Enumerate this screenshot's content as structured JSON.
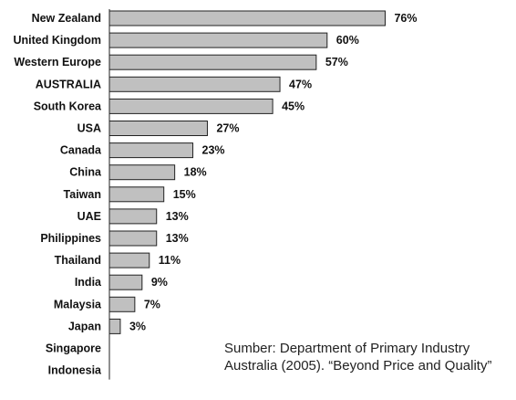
{
  "chart_data": {
    "type": "bar",
    "orientation": "horizontal",
    "categories": [
      "New Zealand",
      "United Kingdom",
      "Western Europe",
      "AUSTRALIA",
      "South Korea",
      "USA",
      "Canada",
      "China",
      "Taiwan",
      "UAE",
      "Philippines",
      "Thailand",
      "India",
      "Malaysia",
      "Japan",
      "Singapore",
      "Indonesia"
    ],
    "values": [
      76,
      60,
      57,
      47,
      45,
      27,
      23,
      18,
      15,
      13,
      13,
      11,
      9,
      7,
      3,
      null,
      null
    ],
    "value_labels": [
      "76%",
      "60%",
      "57%",
      "47%",
      "45%",
      "27%",
      "23%",
      "18%",
      "15%",
      "13%",
      "13%",
      "11%",
      "9%",
      "7%",
      "3%",
      "",
      ""
    ],
    "xlim": [
      0,
      100
    ],
    "grid": false,
    "legend": "none",
    "bar_color": "#c0c0c0"
  },
  "source": {
    "line1": "Sumber: Department of Primary Industry",
    "line2": "Australia (2005). “Beyond Price and Quality”"
  }
}
